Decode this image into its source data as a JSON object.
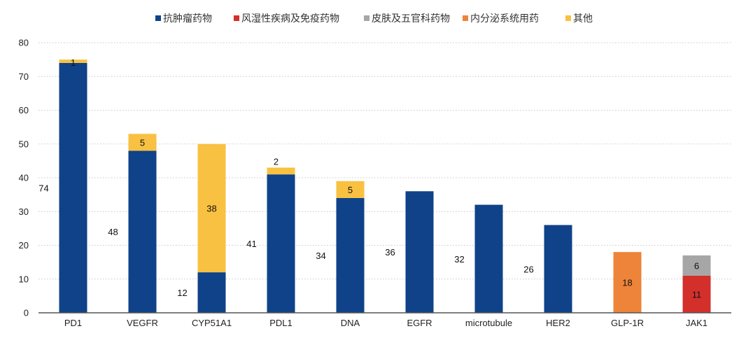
{
  "chart_data": {
    "type": "bar",
    "stacked": true,
    "title": "",
    "xlabel": "",
    "ylabel": "",
    "ylim": [
      0,
      80
    ],
    "yticks": [
      0,
      10,
      20,
      30,
      40,
      50,
      60,
      70,
      80
    ],
    "grid": true,
    "legend_position": "top",
    "categories": [
      "PD1",
      "VEGFR",
      "CYP51A1",
      "PDL1",
      "DNA",
      "EGFR",
      "microtubule",
      "HER2",
      "GLP-1R",
      "JAK1"
    ],
    "series": [
      {
        "name": "抗肿瘤药物",
        "color": "#0f4288",
        "values": [
          74,
          48,
          12,
          41,
          34,
          36,
          32,
          26,
          0,
          0
        ]
      },
      {
        "name": "风湿性疾病及免疫药物",
        "color": "#d3302c",
        "values": [
          0,
          0,
          0,
          0,
          0,
          0,
          0,
          0,
          0,
          11
        ]
      },
      {
        "name": "皮肤及五官科药物",
        "color": "#a6a6a6",
        "values": [
          0,
          0,
          0,
          0,
          0,
          0,
          0,
          0,
          0,
          6
        ]
      },
      {
        "name": "内分泌系统用药",
        "color": "#ee8439",
        "values": [
          0,
          0,
          0,
          0,
          0,
          0,
          0,
          0,
          18,
          0
        ]
      },
      {
        "name": "其他",
        "color": "#f8c142",
        "values": [
          1,
          5,
          38,
          2,
          5,
          0,
          0,
          0,
          0,
          0
        ]
      }
    ]
  }
}
